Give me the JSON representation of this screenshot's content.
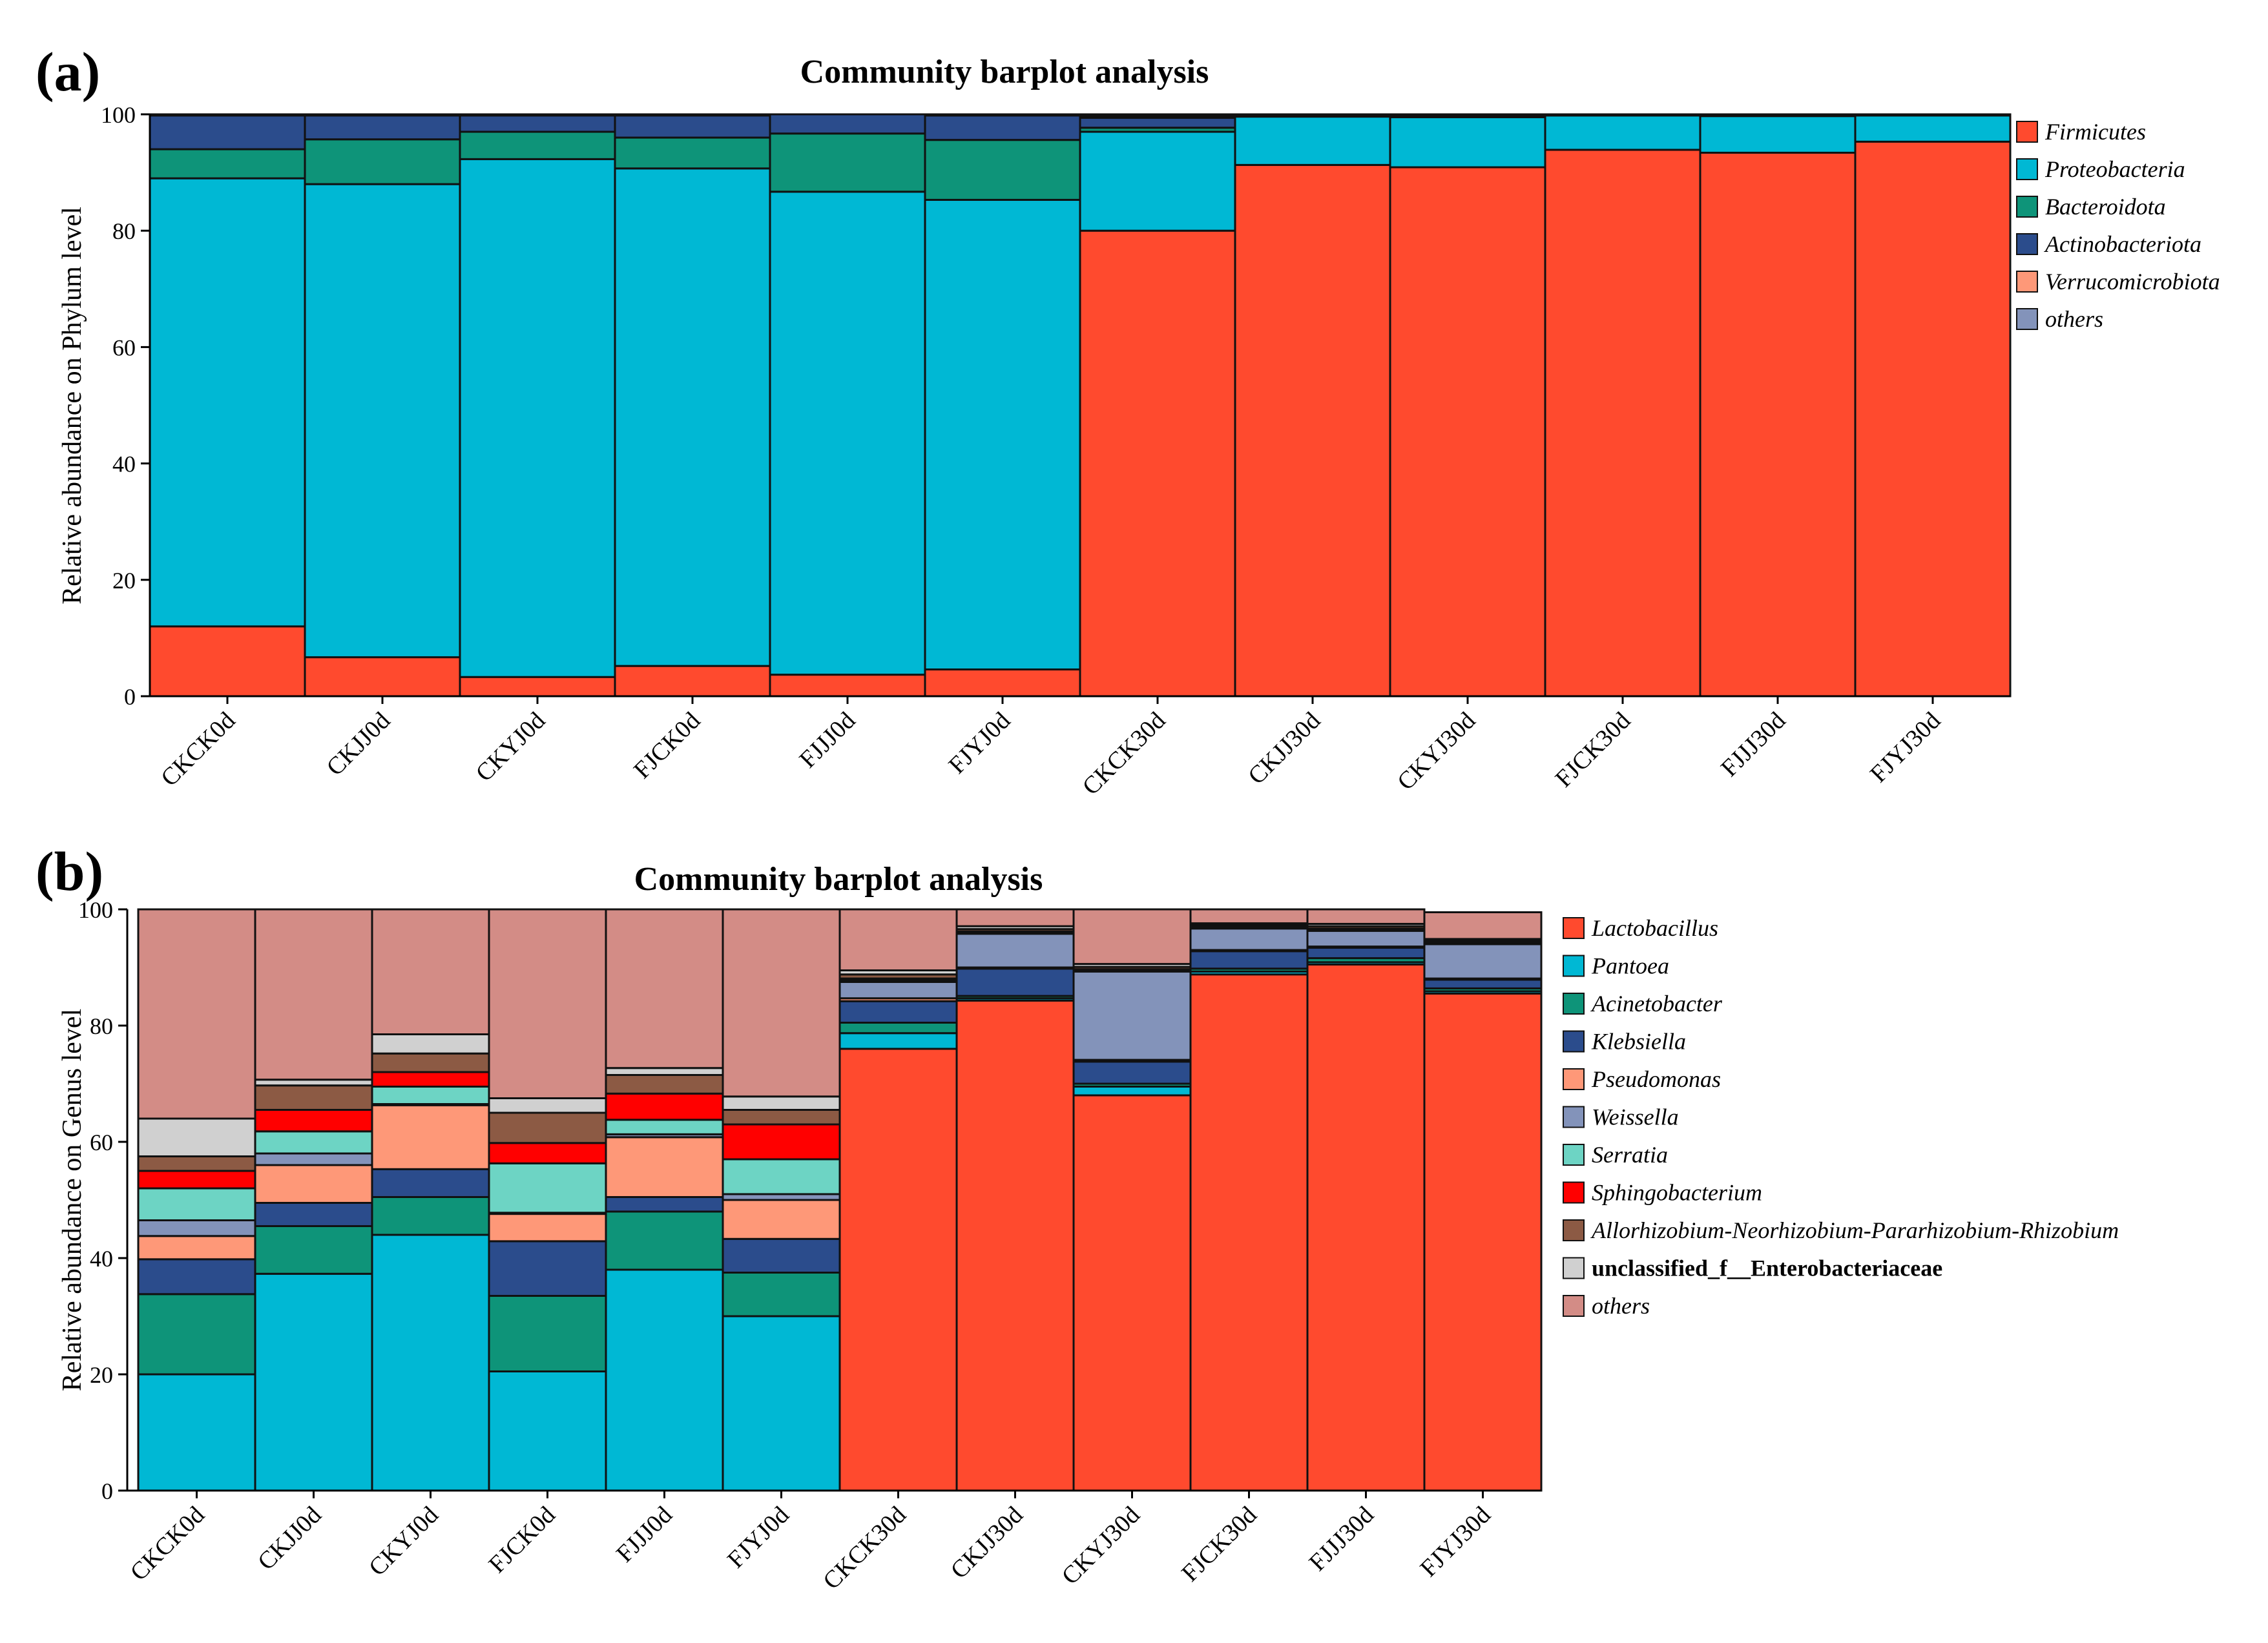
{
  "figure": {
    "panel_labels": [
      "(a)",
      "(b)"
    ]
  },
  "chart_data": [
    {
      "type": "bar",
      "stacked": true,
      "panel": "(a)",
      "title": "Community barplot analysis",
      "xlabel": "",
      "ylabel": "Relative abundance on Phylum level",
      "ylim": [
        0,
        100
      ],
      "yticks": [
        0,
        20,
        40,
        60,
        80,
        100
      ],
      "categories": [
        "CKCK0d",
        "CKJJ0d",
        "CKYJ0d",
        "FJCK0d",
        "FJJJ0d",
        "FJYJ0d",
        "CKCK30d",
        "CKJJ30d",
        "CKYJ30d",
        "FJCK30d",
        "FJJJ30d",
        "FJYJ30d"
      ],
      "legend_position": "right",
      "series": [
        {
          "name": "Firmicutes",
          "color": "#FF4A2E",
          "values": [
            12.0,
            6.7,
            3.3,
            5.2,
            3.7,
            4.6,
            80.0,
            91.3,
            90.9,
            93.9,
            93.4,
            95.3
          ]
        },
        {
          "name": "Proteobacteria",
          "color": "#00B8D4",
          "values": [
            77.0,
            81.3,
            89.0,
            85.5,
            83.0,
            80.7,
            17.0,
            8.3,
            8.6,
            5.9,
            6.3,
            4.5
          ]
        },
        {
          "name": "Bacteroidota",
          "color": "#0E9479",
          "values": [
            5.0,
            7.7,
            4.7,
            5.3,
            10.0,
            10.3,
            0.7,
            0.1,
            0.1,
            0.1,
            0.1,
            0.1
          ]
        },
        {
          "name": "Actinobacteriota",
          "color": "#2B4C8C",
          "values": [
            5.8,
            4.1,
            2.8,
            3.8,
            3.3,
            4.2,
            1.7,
            0.2,
            0.2,
            0.1,
            0.1,
            0.1
          ]
        },
        {
          "name": "Verrucomicrobiota",
          "color": "#FE9878",
          "values": [
            0.1,
            0.1,
            0.1,
            0.1,
            0.0,
            0.1,
            0.3,
            0.0,
            0.0,
            0.0,
            0.0,
            0.0
          ]
        },
        {
          "name": "others",
          "color": "#8393BA",
          "values": [
            0.1,
            0.1,
            0.1,
            0.1,
            0.0,
            0.1,
            0.3,
            0.1,
            0.2,
            0.0,
            0.1,
            0.0
          ]
        }
      ]
    },
    {
      "type": "bar",
      "stacked": true,
      "panel": "(b)",
      "title": "Community barplot analysis",
      "xlabel": "",
      "ylabel": "Relative abundance on Genus level",
      "ylim": [
        0,
        100
      ],
      "yticks": [
        0,
        20,
        40,
        60,
        80,
        100
      ],
      "categories": [
        "CKCK0d",
        "CKJJ0d",
        "CKYJ0d",
        "FJCK0d",
        "FJJJ0d",
        "FJYJ0d",
        "CKCK30d",
        "CKJJ30d",
        "CKYJ30d",
        "FJCK30d",
        "FJJJ30d",
        "FJYJ30d"
      ],
      "legend_position": "right",
      "series": [
        {
          "name": "Lactobacillus",
          "italic": true,
          "color": "#FF4A2E",
          "values": [
            0.0,
            0.0,
            0.0,
            0.0,
            0.0,
            0.0,
            76.0,
            84.3,
            68.0,
            88.8,
            90.5,
            85.5
          ]
        },
        {
          "name": "Pantoea",
          "italic": true,
          "color": "#00B8D4",
          "values": [
            20.0,
            37.3,
            44.0,
            20.5,
            38.0,
            30.0,
            2.7,
            0.4,
            1.5,
            0.5,
            0.4,
            0.4
          ]
        },
        {
          "name": "Acinetobacter",
          "italic": true,
          "color": "#0E9479",
          "values": [
            13.8,
            8.2,
            6.5,
            13.0,
            10.0,
            7.5,
            1.8,
            0.4,
            0.5,
            0.5,
            0.7,
            0.5
          ]
        },
        {
          "name": "Klebsiella",
          "italic": true,
          "color": "#2B4C8C",
          "values": [
            6.0,
            4.0,
            4.8,
            9.4,
            2.5,
            5.8,
            3.7,
            4.7,
            3.8,
            3.0,
            1.8,
            1.5
          ]
        },
        {
          "name": "Pseudomonas",
          "italic": true,
          "color": "#FE9878",
          "values": [
            4.0,
            6.5,
            11.0,
            4.7,
            10.3,
            6.7,
            0.5,
            0.2,
            0.3,
            0.2,
            0.2,
            0.2
          ]
        },
        {
          "name": "Weissella",
          "italic": true,
          "color": "#8393BA",
          "values": [
            2.7,
            2.0,
            0.2,
            0.2,
            0.5,
            1.0,
            2.8,
            5.8,
            15.2,
            3.7,
            2.7,
            5.9
          ]
        },
        {
          "name": "Serratia",
          "italic": true,
          "color": "#6DD4C4",
          "values": [
            5.5,
            3.8,
            3.0,
            8.5,
            2.5,
            6.0,
            0.3,
            0.2,
            0.2,
            0.2,
            0.2,
            0.2
          ]
        },
        {
          "name": "Sphingobacterium",
          "italic": true,
          "color": "#FF0000",
          "values": [
            3.0,
            3.7,
            2.5,
            3.5,
            4.5,
            6.0,
            0.3,
            0.2,
            0.2,
            0.1,
            0.2,
            0.1
          ]
        },
        {
          "name": "Allorhizobium-Neorhizobium-Pararhizobium-Rhizobium",
          "italic": true,
          "color": "#8C5A44",
          "values": [
            2.5,
            4.2,
            3.2,
            5.2,
            3.2,
            2.5,
            0.7,
            0.4,
            0.4,
            0.3,
            0.4,
            0.3
          ]
        },
        {
          "name": "unclassified_f__Enterobacteriaceae",
          "italic": false,
          "color": "#D0D0D0",
          "values": [
            6.5,
            1.0,
            3.3,
            2.5,
            1.2,
            2.3,
            0.7,
            0.5,
            0.5,
            0.3,
            0.4,
            0.3
          ]
        },
        {
          "name": "others",
          "italic": true,
          "color": "#D38C86",
          "values": [
            36.0,
            29.3,
            21.5,
            32.5,
            27.3,
            32.2,
            10.5,
            2.9,
            9.4,
            2.4,
            2.5,
            4.6
          ]
        }
      ]
    }
  ]
}
